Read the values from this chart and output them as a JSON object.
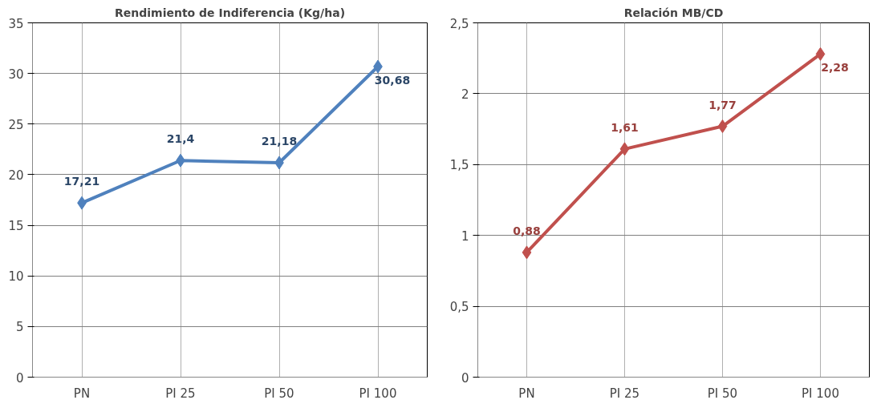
{
  "chart_data": [
    {
      "type": "line",
      "title": "Rendimiento de Indiferencia (Kg/ha)",
      "categories": [
        "PN",
        "PI 25",
        "PI 50",
        "PI 100"
      ],
      "series": [
        {
          "color": "#4f81bd",
          "values": [
            17.21,
            21.4,
            21.18,
            30.68
          ],
          "value_labels": [
            "17,21",
            "21,4",
            "21,18",
            "30,68"
          ]
        }
      ],
      "ylim": [
        0,
        35
      ],
      "yticks": [
        0,
        5,
        10,
        15,
        20,
        25,
        30,
        35
      ],
      "grid": true,
      "marker": "diamond",
      "line_style": "solid"
    },
    {
      "type": "line",
      "title": "Relación MB/CD",
      "categories": [
        "PN",
        "PI 25",
        "PI 50",
        "PI 100"
      ],
      "series": [
        {
          "color": "#c0504d",
          "values": [
            0.88,
            1.61,
            1.77,
            2.28
          ],
          "value_labels": [
            "0,88",
            "1,61",
            "1,77",
            "2,28"
          ]
        }
      ],
      "ylim": [
        0,
        2.5
      ],
      "yticks": [
        0,
        {
          "value": 0.5,
          "label": "0,5"
        },
        1,
        {
          "value": 1.5,
          "label": "1,5"
        },
        2,
        {
          "value": 2.5,
          "label": "2,5"
        }
      ],
      "grid": true,
      "marker": "diamond",
      "line_style": "solid"
    }
  ]
}
